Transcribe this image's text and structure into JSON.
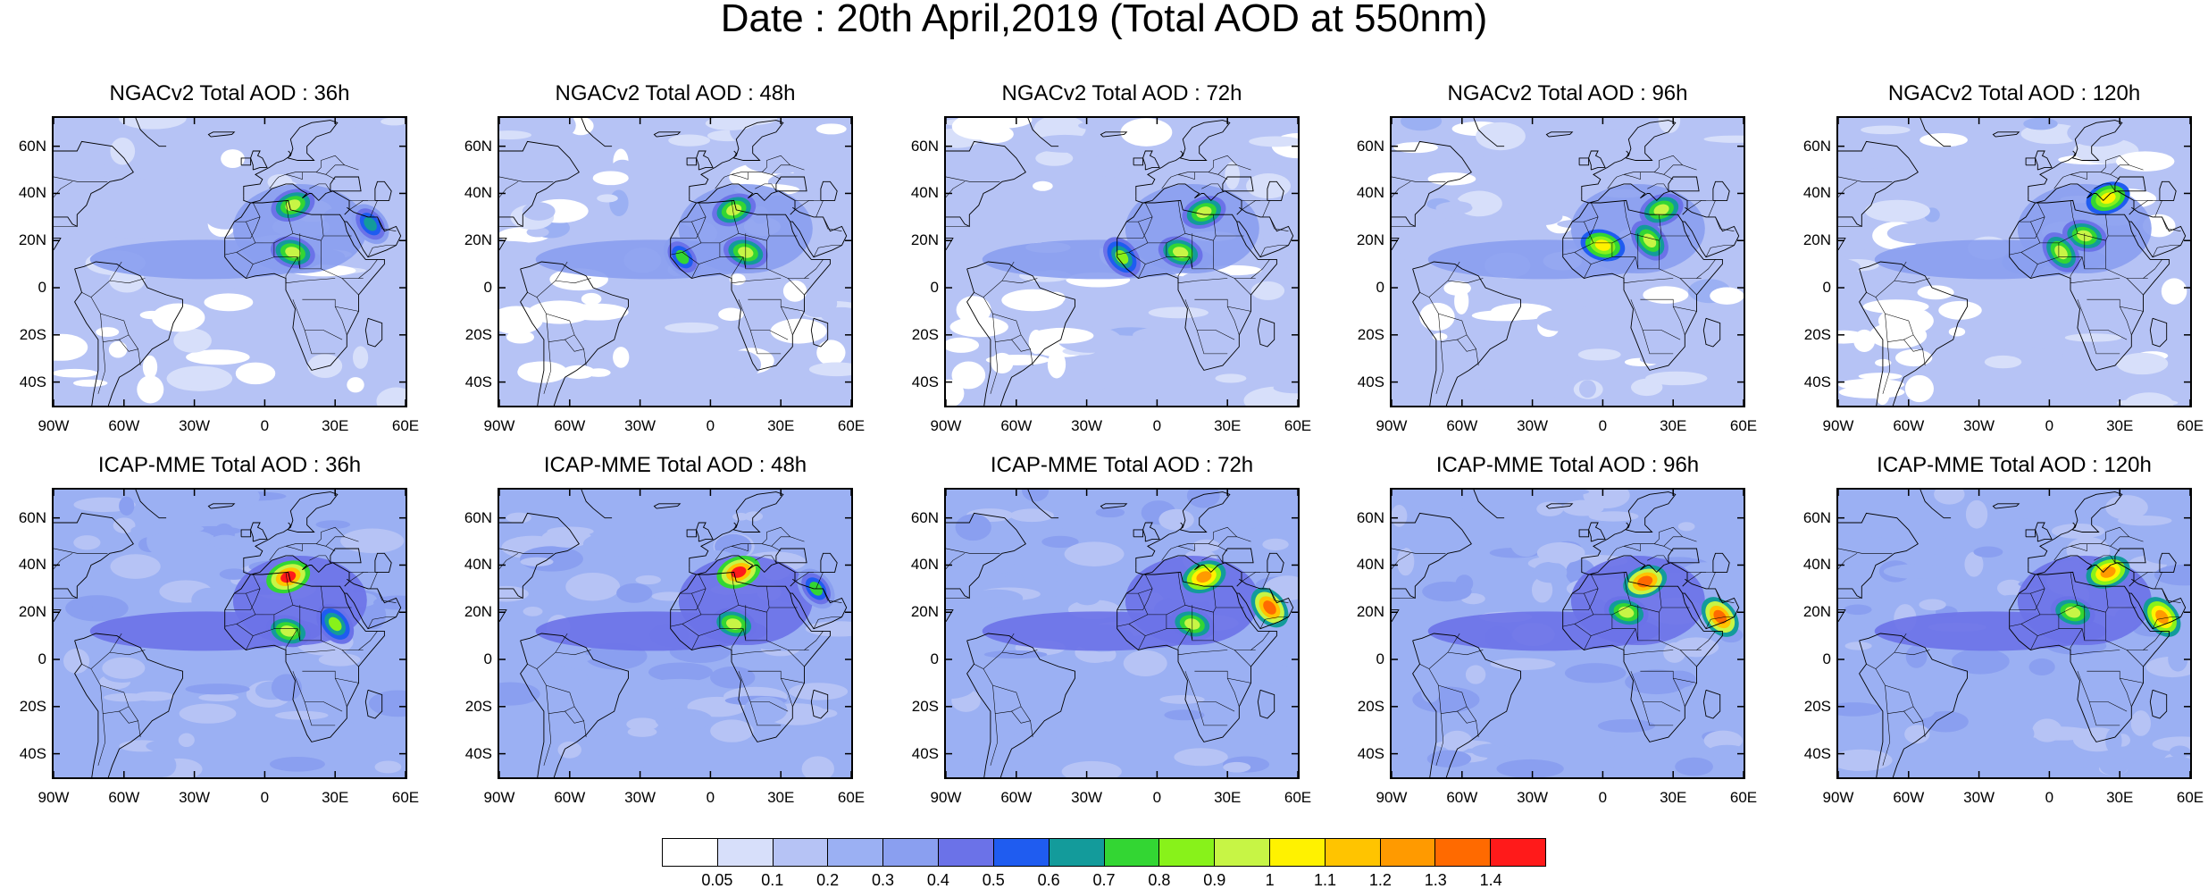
{
  "title": "Date : 20th April,2019 (Total AOD at 550nm)",
  "lat_labels": [
    "60N",
    "40N",
    "20N",
    "0",
    "20S",
    "40S"
  ],
  "lon_labels": [
    "90W",
    "60W",
    "30W",
    "0",
    "30E",
    "60E"
  ],
  "panels": [
    {
      "title": "NGACv2 Total AOD : 36h",
      "model": "NGACv2",
      "lead": 36,
      "plumes": [
        {
          "lon": 12,
          "lat": 35,
          "peak": 0.9
        },
        {
          "lon": 12,
          "lat": 15,
          "peak": 0.9
        },
        {
          "lon": 45,
          "lat": 27,
          "peak": 0.6
        }
      ]
    },
    {
      "title": "NGACv2 Total AOD : 48h",
      "model": "NGACv2",
      "lead": 48,
      "plumes": [
        {
          "lon": 10,
          "lat": 33,
          "peak": 0.9
        },
        {
          "lon": 15,
          "lat": 15,
          "peak": 0.9
        },
        {
          "lon": -12,
          "lat": 13,
          "peak": 0.7
        }
      ]
    },
    {
      "title": "NGACv2 Total AOD : 72h",
      "model": "NGACv2",
      "lead": 72,
      "plumes": [
        {
          "lon": 20,
          "lat": 32,
          "peak": 0.9
        },
        {
          "lon": 10,
          "lat": 15,
          "peak": 0.9
        },
        {
          "lon": -15,
          "lat": 13,
          "peak": 0.8
        }
      ]
    },
    {
      "title": "NGACv2 Total AOD : 96h",
      "model": "NGACv2",
      "lead": 96,
      "plumes": [
        {
          "lon": 25,
          "lat": 33,
          "peak": 0.9
        },
        {
          "lon": 0,
          "lat": 18,
          "peak": 1.0
        },
        {
          "lon": 20,
          "lat": 20,
          "peak": 0.9
        }
      ]
    },
    {
      "title": "NGACv2 Total AOD : 120h",
      "model": "NGACv2",
      "lead": 120,
      "plumes": [
        {
          "lon": 25,
          "lat": 38,
          "peak": 1.0
        },
        {
          "lon": 15,
          "lat": 22,
          "peak": 0.9
        },
        {
          "lon": 5,
          "lat": 15,
          "peak": 0.9
        }
      ]
    },
    {
      "title": "ICAP-MME Total AOD : 36h",
      "model": "ICAP-MME",
      "lead": 36,
      "plumes": [
        {
          "lon": 10,
          "lat": 35,
          "peak": 1.4
        },
        {
          "lon": 10,
          "lat": 12,
          "peak": 0.9
        },
        {
          "lon": 30,
          "lat": 15,
          "peak": 0.8
        }
      ]
    },
    {
      "title": "ICAP-MME Total AOD : 48h",
      "model": "ICAP-MME",
      "lead": 48,
      "plumes": [
        {
          "lon": 12,
          "lat": 37,
          "peak": 1.4
        },
        {
          "lon": 10,
          "lat": 15,
          "peak": 0.9
        },
        {
          "lon": 45,
          "lat": 30,
          "peak": 0.7
        }
      ]
    },
    {
      "title": "ICAP-MME Total AOD : 72h",
      "model": "ICAP-MME",
      "lead": 72,
      "plumes": [
        {
          "lon": 20,
          "lat": 35,
          "peak": 1.2
        },
        {
          "lon": 15,
          "lat": 15,
          "peak": 0.9
        },
        {
          "lon": 48,
          "lat": 22,
          "peak": 1.3
        }
      ]
    },
    {
      "title": "ICAP-MME Total AOD : 96h",
      "model": "ICAP-MME",
      "lead": 96,
      "plumes": [
        {
          "lon": 18,
          "lat": 33,
          "peak": 1.3
        },
        {
          "lon": 10,
          "lat": 20,
          "peak": 0.9
        },
        {
          "lon": 50,
          "lat": 18,
          "peak": 1.3
        }
      ]
    },
    {
      "title": "ICAP-MME Total AOD : 120h",
      "model": "ICAP-MME",
      "lead": 120,
      "plumes": [
        {
          "lon": 25,
          "lat": 37,
          "peak": 1.2
        },
        {
          "lon": 10,
          "lat": 20,
          "peak": 0.9
        },
        {
          "lon": 48,
          "lat": 18,
          "peak": 1.2
        }
      ]
    }
  ],
  "colorbar": {
    "levels": [
      "0.05",
      "0.1",
      "0.2",
      "0.3",
      "0.4",
      "0.5",
      "0.6",
      "0.7",
      "0.8",
      "0.9",
      "1",
      "1.1",
      "1.2",
      "1.3",
      "1.4"
    ],
    "colors": [
      "#ffffff",
      "#d7dffa",
      "#b6c3f5",
      "#9bb0f3",
      "#8a9ff0",
      "#6b72e8",
      "#1f5cf0",
      "#139b9b",
      "#33d633",
      "#88f21a",
      "#c7f545",
      "#fff200",
      "#ffc400",
      "#ff9a00",
      "#ff6a00",
      "#ff1a1a"
    ]
  }
}
